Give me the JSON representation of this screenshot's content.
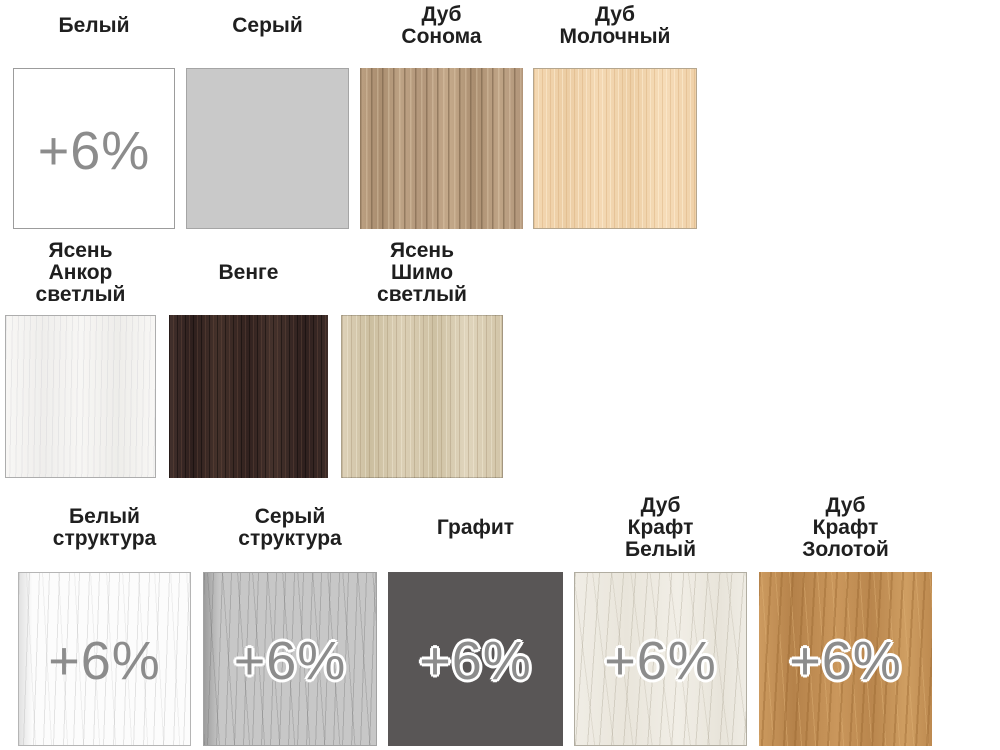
{
  "palette": {
    "background": "#ffffff",
    "label_color": "#1f1f1f",
    "surcharge_color": "#8c8c8c",
    "surcharge_outline_color": "#ffffff"
  },
  "swatches": [
    {
      "label": "Белый",
      "surcharge": "+6%",
      "base_color": "#ffffff"
    },
    {
      "label": "Серый",
      "surcharge": "",
      "base_color": "#c9c9c9"
    },
    {
      "label": "Дуб\nСонома",
      "surcharge": "",
      "base_color": "#b69b7d"
    },
    {
      "label": "Дуб\nМолочный",
      "surcharge": "",
      "base_color": "#f1d2ab"
    },
    {
      "label": "Ясень\nАнкор\nсветлый",
      "surcharge": "",
      "base_color": "#f5f4f1"
    },
    {
      "label": "Венге",
      "surcharge": "",
      "base_color": "#39292a"
    },
    {
      "label": "Ясень\nШимо\nсветлый",
      "surcharge": "",
      "base_color": "#d7c9ae"
    },
    {
      "label": "Белый\nструктура",
      "surcharge": "+6%",
      "base_color": "#fcfcfc"
    },
    {
      "label": "Серый\nструктура",
      "surcharge": "+6%",
      "base_color": "#c7c7c7"
    },
    {
      "label": "Графит",
      "surcharge": "+6%",
      "base_color": "#595656"
    },
    {
      "label": "Дуб\nКрафт\nБелый",
      "surcharge": "+6%",
      "base_color": "#edeae1"
    },
    {
      "label": "Дуб\nКрафт\nЗолотой",
      "surcharge": "+6%",
      "base_color": "#c48f53"
    }
  ]
}
